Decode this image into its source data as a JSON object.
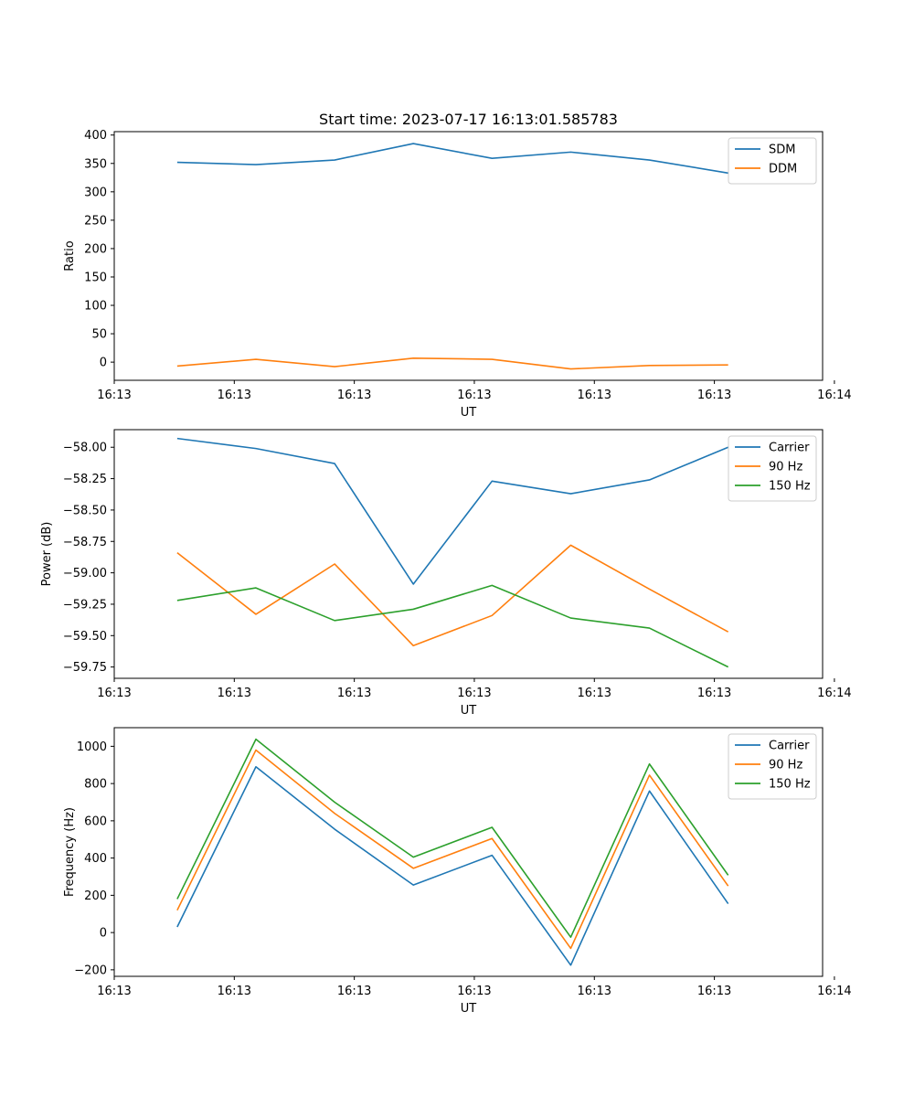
{
  "figure_title": "Start time: 2023-07-17 16:13:01.585783",
  "colors": {
    "blue": "#1f77b4",
    "orange": "#ff7f0e",
    "green": "#2ca02c"
  },
  "chart_data": [
    {
      "type": "line",
      "title": "Start time: 2023-07-17 16:13:01.585783",
      "xlabel": "UT",
      "ylabel": "Ratio",
      "x": [
        1,
        2,
        3,
        4,
        5,
        6,
        7,
        8
      ],
      "xlim": [
        0.2,
        9.2
      ],
      "x_ticks": [
        0.2,
        1.725,
        3.25,
        4.775,
        6.3,
        7.825,
        9.35
      ],
      "x_tick_labels": [
        "16:13",
        "16:13",
        "16:13",
        "16:13",
        "16:13",
        "16:13",
        "16:14"
      ],
      "ylim": [
        -32,
        406
      ],
      "y_ticks": [
        0,
        50,
        100,
        150,
        200,
        250,
        300,
        350,
        400
      ],
      "y_tick_labels": [
        "0",
        "50",
        "100",
        "150",
        "200",
        "250",
        "300",
        "350",
        "400"
      ],
      "legend_position": "upper-right",
      "series": [
        {
          "name": "SDM",
          "color": "#1f77b4",
          "values": [
            352,
            348,
            356,
            385,
            359,
            370,
            356,
            333
          ]
        },
        {
          "name": "DDM",
          "color": "#ff7f0e",
          "values": [
            -7,
            5,
            -8,
            7,
            5,
            -12,
            -6,
            -5
          ]
        }
      ]
    },
    {
      "type": "line",
      "title": "",
      "xlabel": "UT",
      "ylabel": "Power (dB)",
      "x": [
        1,
        2,
        3,
        4,
        5,
        6,
        7,
        8
      ],
      "xlim": [
        0.2,
        9.2
      ],
      "x_ticks": [
        0.2,
        1.725,
        3.25,
        4.775,
        6.3,
        7.825,
        9.35
      ],
      "x_tick_labels": [
        "16:13",
        "16:13",
        "16:13",
        "16:13",
        "16:13",
        "16:13",
        "16:14"
      ],
      "ylim": [
        -59.84,
        -57.86
      ],
      "y_ticks": [
        -59.75,
        -59.5,
        -59.25,
        -59.0,
        -58.75,
        -58.5,
        -58.25,
        -58.0
      ],
      "y_tick_labels": [
        "−59.75",
        "−59.50",
        "−59.25",
        "−59.00",
        "−58.75",
        "−58.50",
        "−58.25",
        "−58.00"
      ],
      "legend_position": "upper-right",
      "series": [
        {
          "name": "Carrier",
          "color": "#1f77b4",
          "values": [
            -57.93,
            -58.01,
            -58.13,
            -59.09,
            -58.27,
            -58.37,
            -58.26,
            -58.0
          ]
        },
        {
          "name": "90 Hz",
          "color": "#ff7f0e",
          "values": [
            -58.84,
            -59.33,
            -58.93,
            -59.58,
            -59.34,
            -58.78,
            -59.13,
            -59.47
          ]
        },
        {
          "name": "150 Hz",
          "color": "#2ca02c",
          "values": [
            -59.22,
            -59.12,
            -59.38,
            -59.29,
            -59.1,
            -59.36,
            -59.44,
            -59.75
          ]
        }
      ]
    },
    {
      "type": "line",
      "title": "",
      "xlabel": "UT",
      "ylabel": "Frequency (Hz)",
      "x": [
        1,
        2,
        3,
        4,
        5,
        6,
        7,
        8
      ],
      "xlim": [
        0.2,
        9.2
      ],
      "x_ticks": [
        0.2,
        1.725,
        3.25,
        4.775,
        6.3,
        7.825,
        9.35
      ],
      "x_tick_labels": [
        "16:13",
        "16:13",
        "16:13",
        "16:13",
        "16:13",
        "16:13",
        "16:14"
      ],
      "ylim": [
        -235,
        1100
      ],
      "y_ticks": [
        -200,
        0,
        200,
        400,
        600,
        800,
        1000
      ],
      "y_tick_labels": [
        "−200",
        "0",
        "200",
        "400",
        "600",
        "800",
        "1000"
      ],
      "legend_position": "upper-right",
      "series": [
        {
          "name": "Carrier",
          "color": "#1f77b4",
          "values": [
            30,
            890,
            555,
            255,
            415,
            -175,
            760,
            155
          ]
        },
        {
          "name": "90 Hz",
          "color": "#ff7f0e",
          "values": [
            120,
            980,
            640,
            345,
            505,
            -85,
            845,
            250
          ]
        },
        {
          "name": "150 Hz",
          "color": "#2ca02c",
          "values": [
            180,
            1038,
            700,
            405,
            565,
            -25,
            905,
            308
          ]
        }
      ]
    }
  ]
}
